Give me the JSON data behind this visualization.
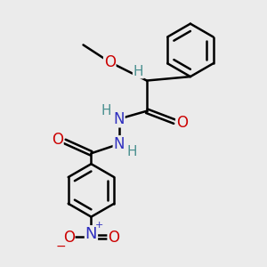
{
  "bg_color": "#ebebeb",
  "bond_color": "#000000",
  "bond_width": 1.8,
  "atom_colors": {
    "C": "#000000",
    "H": "#4a9090",
    "N": "#3030c0",
    "O": "#cc0000"
  },
  "font_size": 11,
  "figsize": [
    3.0,
    3.0
  ],
  "dpi": 100
}
